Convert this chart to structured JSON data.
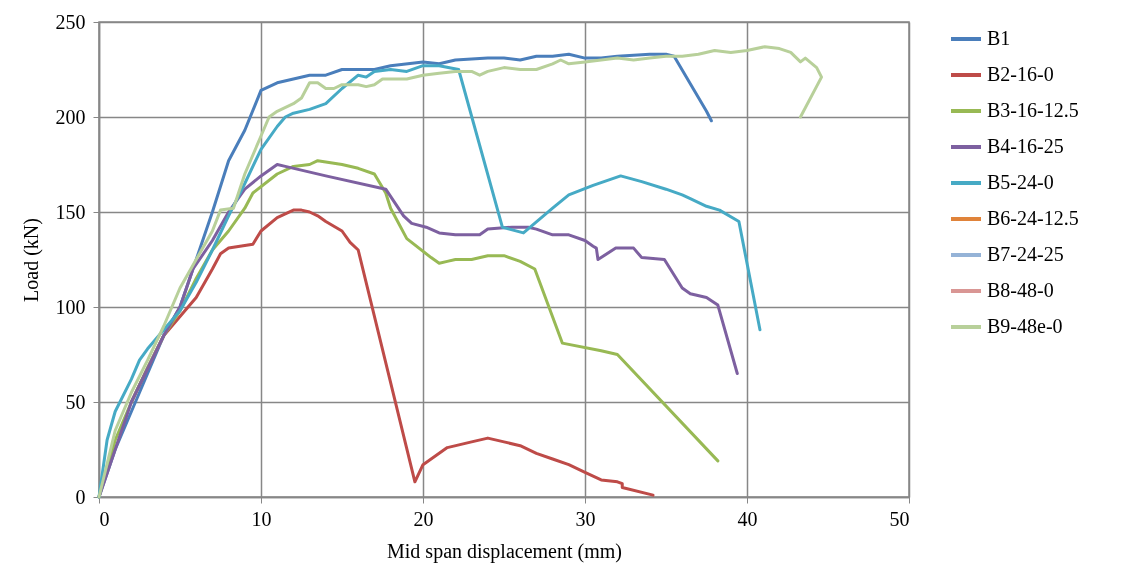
{
  "chart_data": {
    "type": "line",
    "xlabel": "Mid span displacement (mm)",
    "ylabel": "Load (kN)",
    "xlim": [
      0,
      50
    ],
    "ylim": [
      0,
      250
    ],
    "xticks": [
      0,
      10,
      20,
      30,
      40,
      50
    ],
    "yticks": [
      0,
      50,
      100,
      150,
      200,
      250
    ],
    "grid": true,
    "legend": "right",
    "series": [
      {
        "name": "B1",
        "color": "#4a7ebb",
        "x": [
          0,
          1,
          2,
          3,
          4,
          5,
          6,
          7,
          8,
          9,
          10,
          11,
          12,
          13,
          14,
          15,
          17,
          18,
          20,
          21,
          22,
          24,
          25,
          26,
          27,
          28,
          29,
          30,
          31,
          32,
          34,
          35,
          35.5,
          37.5,
          37.8
        ],
        "values": [
          0,
          25,
          45,
          65,
          85,
          100,
          125,
          150,
          177,
          193,
          214,
          218,
          220,
          222,
          222,
          225,
          225,
          227,
          229,
          228,
          230,
          231,
          231,
          230,
          232,
          232,
          233,
          231,
          231,
          232,
          233,
          233,
          232,
          203,
          198
        ]
      },
      {
        "name": "B2-16-0",
        "color": "#be4b48",
        "x": [
          2,
          3,
          4,
          5,
          6,
          7,
          7.5,
          8,
          9.5,
          10,
          11,
          12,
          12.5,
          13,
          13.5,
          14,
          15,
          15.5,
          16,
          19.5,
          20,
          21.5,
          23,
          24,
          25,
          26,
          27,
          28,
          29,
          30,
          30.5,
          31,
          32,
          32.3,
          32.3,
          34.2
        ],
        "values": [
          50,
          68,
          85,
          95,
          105,
          120,
          128,
          131,
          133,
          140,
          147,
          151,
          151,
          150,
          148,
          145,
          140,
          134,
          130,
          8,
          17,
          26,
          29,
          31,
          29,
          27,
          23,
          20,
          17,
          13,
          11,
          9,
          8,
          7,
          5,
          1
        ]
      },
      {
        "name": "B3-16-12.5",
        "color": "#98b954",
        "x": [
          0,
          1,
          2,
          3,
          4,
          5,
          6,
          7,
          8,
          9,
          9.5,
          11,
          12,
          13,
          13.5,
          15,
          16,
          17,
          17.7,
          18,
          19,
          20.5,
          21,
          21.5,
          22,
          23,
          24,
          25,
          26,
          26.9,
          28.6,
          31,
          32,
          38.2
        ],
        "values": [
          0,
          30,
          50,
          68,
          85,
          98,
          115,
          130,
          140,
          152,
          160,
          170,
          174,
          175,
          177,
          175,
          173,
          170,
          160,
          152,
          136,
          126,
          123,
          124,
          125,
          125,
          127,
          127,
          124,
          120,
          81,
          77,
          75,
          19
        ]
      },
      {
        "name": "B4-16-25",
        "color": "#7d60a0",
        "x": [
          0,
          2,
          4,
          5,
          5.8,
          7,
          8,
          9,
          10,
          11,
          11.5,
          14,
          17.7,
          18.8,
          19.3,
          20.2,
          21,
          22,
          23.5,
          24,
          25.5,
          26.5,
          27,
          28,
          29,
          30,
          30.5,
          30.7,
          30.8,
          31.9,
          33,
          33.5,
          34.9,
          36,
          36.5,
          37.5,
          38.2,
          39.4
        ],
        "values": [
          0,
          50,
          85,
          100,
          120,
          135,
          150,
          162,
          169,
          175,
          174,
          169,
          162,
          148,
          144,
          142,
          139,
          138,
          138,
          141,
          142,
          142,
          141,
          138,
          138,
          135,
          132,
          131,
          125,
          131,
          131,
          126,
          125,
          110,
          107,
          105,
          101,
          65
        ]
      },
      {
        "name": "B5-24-0",
        "color": "#46aac5",
        "x": [
          0,
          0.5,
          1,
          2,
          2.5,
          3,
          4,
          5,
          6,
          7,
          8,
          9,
          10,
          11,
          11.5,
          12,
          13,
          14,
          15,
          16,
          16.5,
          17,
          18,
          19,
          20,
          21,
          22.2,
          24.9,
          26.2,
          28,
          29,
          30.5,
          32.2,
          33.5,
          35,
          36,
          36.5,
          37.5,
          38.3,
          39.5,
          40.8
        ],
        "values": [
          0,
          30,
          45,
          62,
          72,
          78,
          88,
          98,
          113,
          130,
          148,
          165,
          183,
          195,
          200,
          202,
          204,
          207,
          215,
          222,
          221,
          224,
          225,
          224,
          227,
          227,
          225,
          142,
          139,
          152,
          159,
          164,
          169,
          166,
          162,
          159,
          157,
          153,
          151,
          145,
          88
        ]
      },
      {
        "name": "B6-24-12.5",
        "color": "#e0833a"
      },
      {
        "name": "B7-24-25",
        "color": "#95b3d7"
      },
      {
        "name": "B8-48-0",
        "color": "#d99694"
      },
      {
        "name": "B9-48e-0",
        "color": "#b8d09a",
        "x": [
          0,
          1,
          2,
          3,
          4,
          5,
          6,
          7,
          7.5,
          8.3,
          9,
          10,
          10.5,
          11,
          12,
          12.5,
          13,
          13.5,
          14,
          14.5,
          15,
          16,
          16.5,
          17,
          17.5,
          19,
          20,
          21,
          22,
          23,
          23.5,
          24,
          25,
          26,
          27,
          28,
          28.5,
          29,
          30,
          31,
          32,
          33,
          34,
          35,
          36,
          37,
          38,
          39,
          40,
          41.1,
          42,
          42.7,
          43.3,
          43.6,
          44.3,
          44.6,
          43.3
        ],
        "values": [
          0,
          35,
          55,
          72,
          90,
          110,
          125,
          140,
          151,
          152,
          170,
          190,
          200,
          203,
          207,
          210,
          218,
          218,
          215,
          215,
          217,
          217,
          216,
          217,
          220,
          220,
          222,
          223,
          224,
          224,
          222,
          224,
          226,
          225,
          225,
          228,
          230,
          228,
          229,
          230,
          231,
          230,
          231,
          232,
          232,
          233,
          235,
          234,
          235,
          237,
          236,
          234,
          229,
          231,
          226,
          221,
          200
        ]
      }
    ]
  }
}
